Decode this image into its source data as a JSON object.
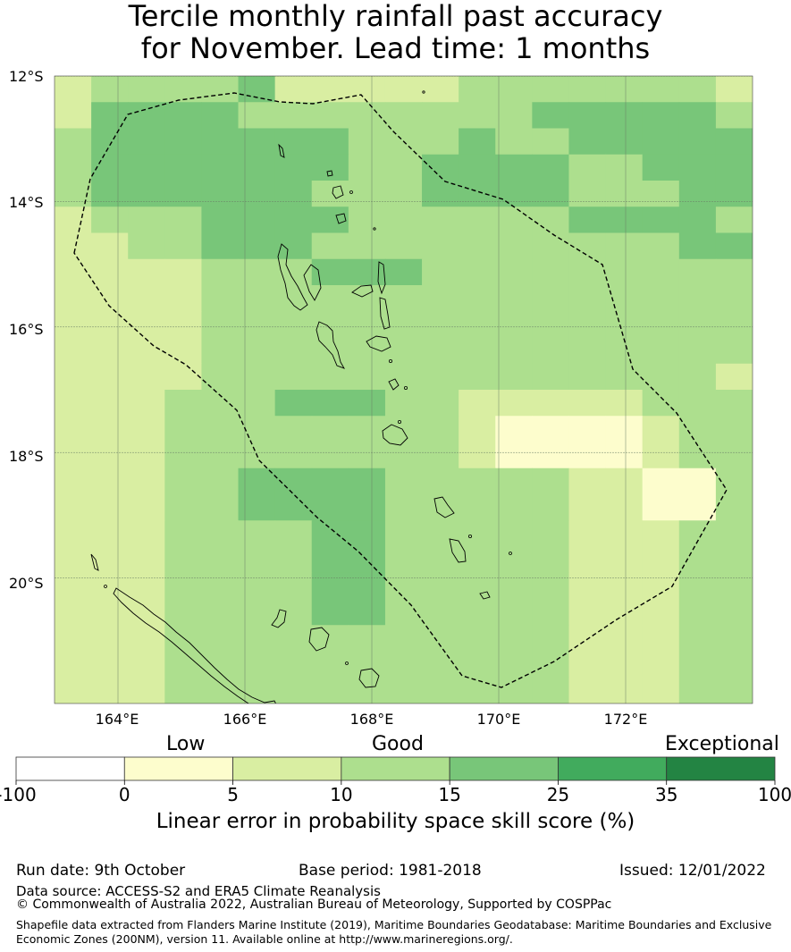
{
  "title": {
    "line1": "Tercile monthly rainfall past accuracy",
    "line2": "for November. Lead time: 1 months"
  },
  "map": {
    "lat_ticks": [
      "12°S",
      "14°S",
      "16°S",
      "18°S",
      "20°S"
    ],
    "lon_ticks": [
      "164°E",
      "166°E",
      "168°E",
      "170°E",
      "172°E"
    ],
    "region": "Vanuatu",
    "eez_boundary": "dashed",
    "legend_colors": {
      "0": "#fdfdcd",
      "1": "#d9eea2",
      "2": "#addf8e",
      "3": "#78c679",
      "4": "#41ab5d",
      "5": "#238443"
    },
    "grid_cells": [
      "1222231111122222221",
      "1333322222222333332",
      "2333333322232233333",
      "2333333322333322333",
      "2333333222333322233",
      "1222333322222233332",
      "1122333222222222233",
      "1111222333222222222",
      "1111222222222222222",
      "1111222222222222222",
      "1111222222222222222",
      "1111222222222222221",
      "1112223332211111222",
      "1112222222210000122",
      "1112222222210000122",
      "1112233332222211002",
      "1112233332222211002",
      "1112222332222211122",
      "1112222332222211122",
      "1112222332222211122",
      "1112222332222211122",
      "1112222222222211122",
      "1112222222222211122",
      "1112222222222211122"
    ]
  },
  "chart_data": {
    "type": "heatmap",
    "title": "Tercile monthly rainfall past accuracy for November. Lead time: 1 months",
    "xlabel": "",
    "ylabel": "",
    "x_ticks": [
      "164°E",
      "166°E",
      "168°E",
      "170°E",
      "172°E"
    ],
    "y_ticks": [
      "12°S",
      "14°S",
      "16°S",
      "18°S",
      "20°S"
    ],
    "lon_range": [
      163,
      174
    ],
    "lat_range": [
      -22,
      -12
    ],
    "grid": true
  },
  "colorbar": {
    "categories": [
      {
        "label": "Low",
        "pos": 210
      },
      {
        "label": "Good",
        "pos": 447
      },
      {
        "label": "Exceptional",
        "pos": 812
      }
    ],
    "bins": [
      {
        "from": -100,
        "to": 0,
        "color": "#ffffff"
      },
      {
        "from": 0,
        "to": 5,
        "color": "#fdfdcd"
      },
      {
        "from": 5,
        "to": 10,
        "color": "#d9eea2"
      },
      {
        "from": 10,
        "to": 15,
        "color": "#addf8e"
      },
      {
        "from": 15,
        "to": 25,
        "color": "#78c679"
      },
      {
        "from": 25,
        "to": 35,
        "color": "#41ab5d"
      },
      {
        "from": 35,
        "to": 100,
        "color": "#238443"
      }
    ],
    "tick_labels": [
      "-100",
      "0",
      "5",
      "10",
      "15",
      "25",
      "35",
      "100"
    ],
    "label": "Linear error in probability space skill score (%)"
  },
  "footer": {
    "run_date": "Run date: 9th October",
    "base_period": "Base period: 1981-2018",
    "issued": "Issued: 12/01/2022",
    "data_source": "Data source: ACCESS-S2 and ERA5 Climate Reanalysis",
    "copyright": "© Commonwealth of Australia 2022, Australian Bureau of Meteorology, Supported by COSPPac",
    "shapefile": "Shapefile data extracted from Flanders Marine Institute (2019), Maritime Boundaries Geodatabase: Maritime Boundaries and Exclusive Economic Zones (200NM), version 11. Available online at http://www.marineregions.org/."
  }
}
